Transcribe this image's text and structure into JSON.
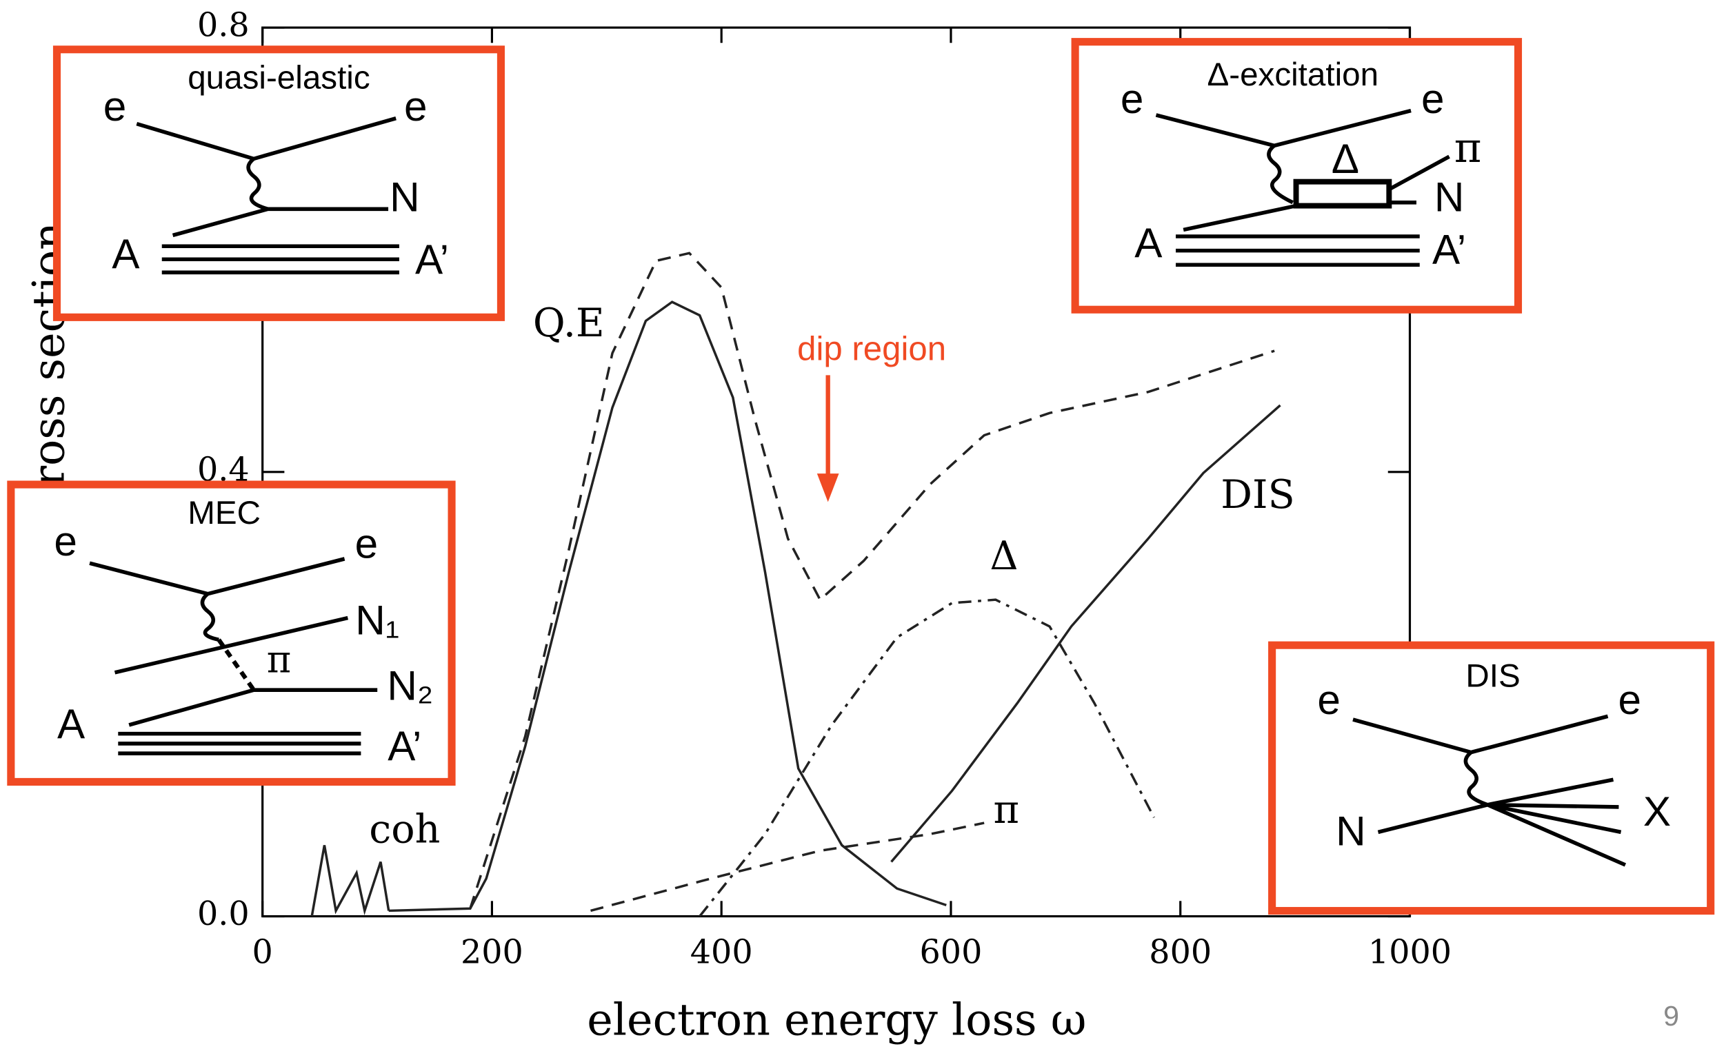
{
  "chart_data": {
    "type": "line",
    "xlabel": "electron energy loss ω",
    "ylabel": "inclusive cross section",
    "xlim": [
      0,
      1000
    ],
    "ylim": [
      0,
      0.8
    ],
    "xticks": [
      0,
      200,
      400,
      600,
      800,
      1000
    ],
    "yticks": [
      {
        "value": 0,
        "label": "0.0"
      },
      0.4,
      0.8
    ],
    "series": [
      {
        "color": "#222222",
        "style": "dashed",
        "x": [
          181,
          229,
          267,
          305,
          343,
          372,
          400,
          429,
          458,
          486,
          524,
          582,
          629,
          686,
          772,
          882
        ],
        "values": [
          0.007,
          0.162,
          0.33,
          0.507,
          0.59,
          0.597,
          0.566,
          0.448,
          0.34,
          0.285,
          0.32,
          0.389,
          0.433,
          0.453,
          0.472,
          0.509
        ]
      },
      {
        "name": "Q.E",
        "color": "#222222",
        "style": "solid",
        "x": [
          110,
          181,
          195,
          229,
          267,
          305,
          334,
          357,
          381,
          410,
          438,
          467,
          505,
          553,
          596
        ],
        "values": [
          0.005,
          0.007,
          0.034,
          0.153,
          0.31,
          0.458,
          0.536,
          0.553,
          0.541,
          0.467,
          0.31,
          0.133,
          0.064,
          0.025,
          0.01
        ]
      },
      {
        "name": "Δ",
        "color": "#222222",
        "style": "dashdot",
        "x": [
          381,
          438,
          496,
          553,
          601,
          639,
          686,
          725,
          777
        ],
        "values": [
          0,
          0.074,
          0.172,
          0.251,
          0.282,
          0.285,
          0.261,
          0.192,
          0.089
        ]
      },
      {
        "name": "π",
        "color": "#222222",
        "style": "dashed",
        "x": [
          286,
          391,
          486,
          582,
          629
        ],
        "values": [
          0.005,
          0.034,
          0.059,
          0.074,
          0.084
        ]
      },
      {
        "name": "DIS",
        "color": "#222222",
        "style": "solid",
        "x": [
          548,
          601,
          658,
          705,
          772,
          820,
          887
        ],
        "values": [
          0.049,
          0.113,
          0.192,
          0.261,
          0.34,
          0.399,
          0.46
        ]
      },
      {
        "name": "coh",
        "color": "#222222",
        "style": "solid",
        "x": [
          43,
          54,
          64,
          82,
          89,
          103,
          110
        ],
        "values": [
          0,
          0.064,
          0.005,
          0.039,
          0.005,
          0.049,
          0.005
        ]
      }
    ],
    "annotation": "dip region"
  },
  "insets": [
    {
      "title": "quasi-elastic",
      "labels": [
        "e",
        "e",
        "N",
        "A",
        "A’"
      ]
    },
    {
      "title": "Δ-excitation",
      "labels": [
        "e",
        "e",
        "Δ",
        "π",
        "N",
        "A",
        "A’"
      ]
    },
    {
      "title": "MEC",
      "labels": [
        "e",
        "e",
        "N₁",
        "π",
        "N₂",
        "A",
        "A’"
      ]
    },
    {
      "title": "DIS",
      "labels": [
        "e",
        "e",
        "N",
        "X"
      ]
    }
  ],
  "slide_number": "9"
}
